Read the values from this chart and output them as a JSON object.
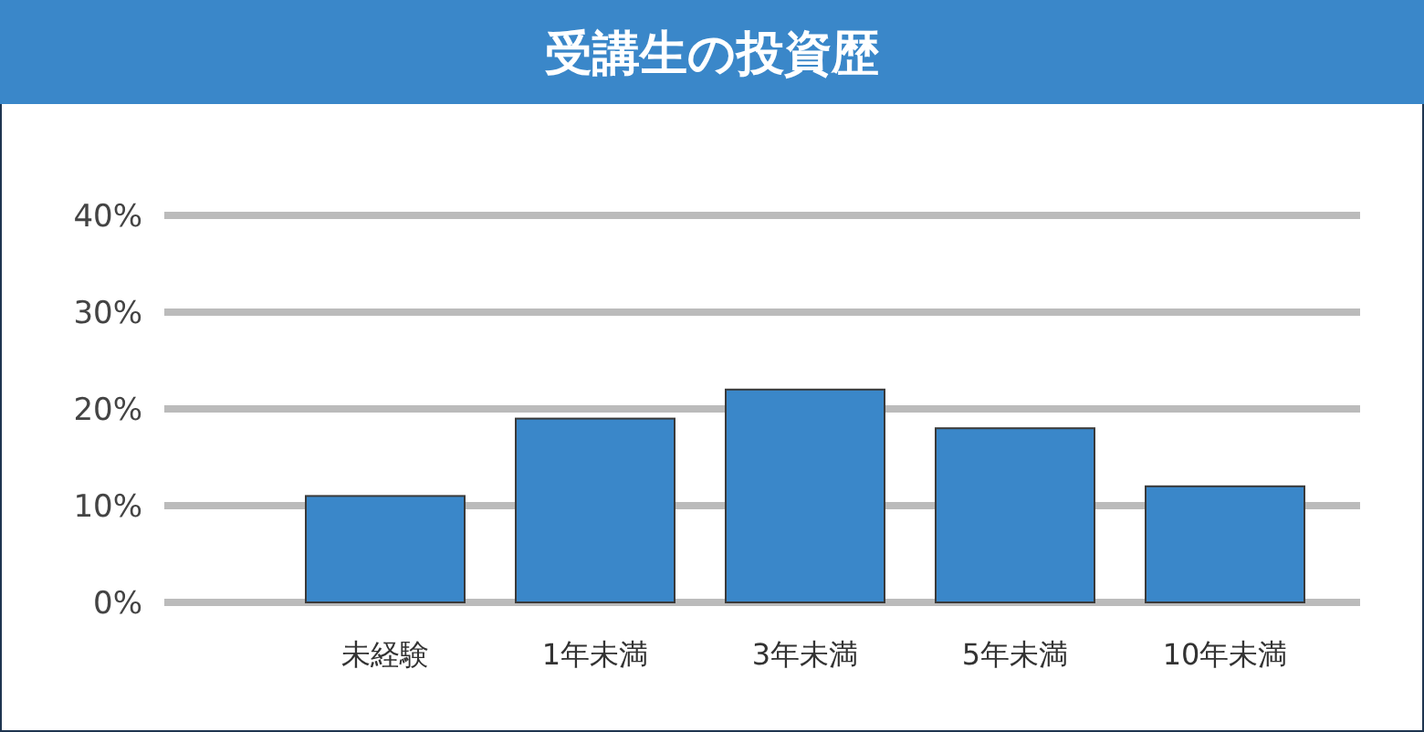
{
  "chart_data": {
    "type": "bar",
    "title": "受講生の投資歴",
    "categories": [
      "未経験",
      "1年未満",
      "3年未満",
      "5年未満",
      "10年未満"
    ],
    "values": [
      11,
      19,
      22,
      18,
      12
    ],
    "color": "#3a87c9",
    "ylim": [
      0,
      40
    ],
    "yticks": [
      {
        "value": 0,
        "label": "0%"
      },
      {
        "value": 10,
        "label": "10%"
      },
      {
        "value": 20,
        "label": "20%"
      },
      {
        "value": 30,
        "label": "30%"
      },
      {
        "value": 40,
        "label": "40%"
      }
    ],
    "grid": "y"
  }
}
